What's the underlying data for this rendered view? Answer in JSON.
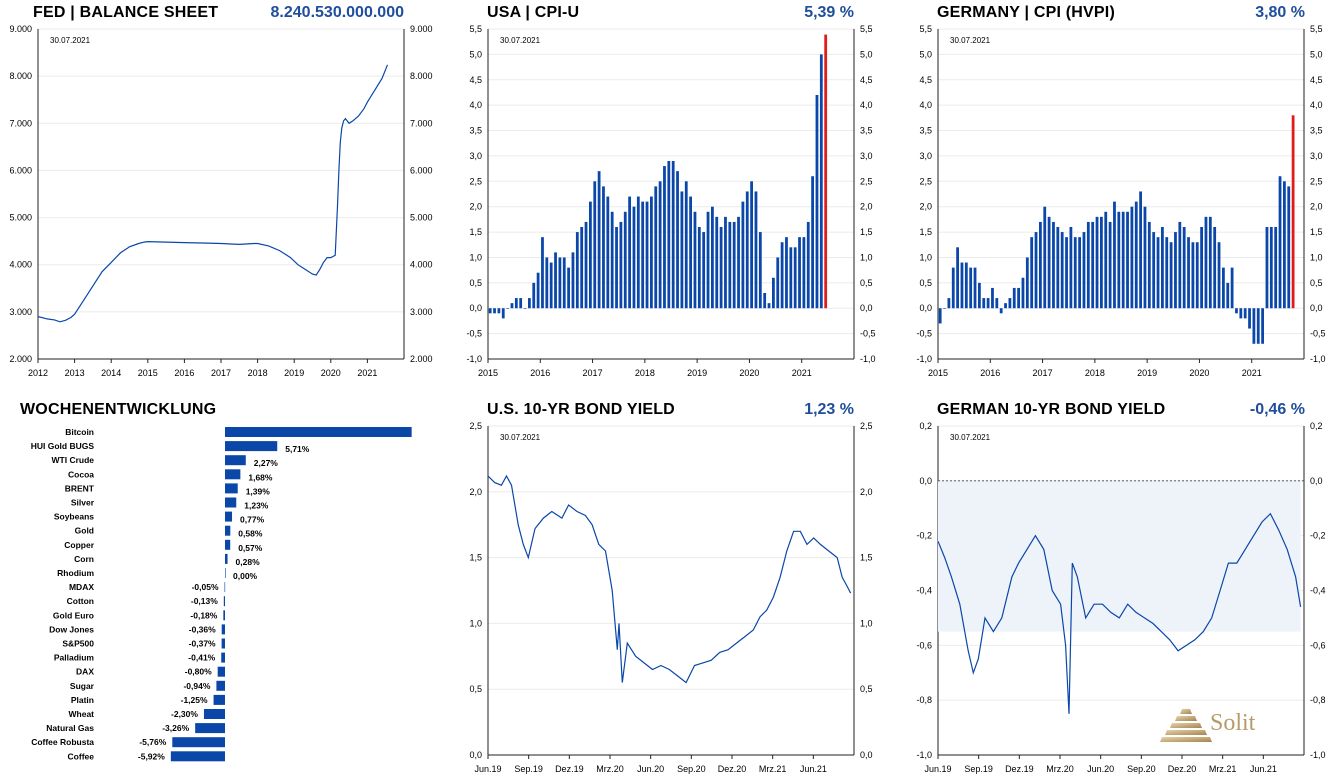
{
  "date_label": "30.07.2021",
  "brand": "Solit",
  "colors": {
    "blue": "#0a47a9",
    "red": "#e11a1a",
    "accent_text": "#1f4e9c",
    "shade": "#eef3fa"
  },
  "chart_data": [
    {
      "id": "fed",
      "type": "line",
      "title": "FED | BALANCE SHEET",
      "headline_value": "8.240.530.000.000",
      "date_label": "30.07.2021",
      "x_ticks": [
        "2012",
        "2013",
        "2014",
        "2015",
        "2016",
        "2017",
        "2018",
        "2019",
        "2020",
        "2021"
      ],
      "y_ticks": [
        "2.000",
        "3.000",
        "4.000",
        "5.000",
        "6.000",
        "7.000",
        "8.000",
        "9.000"
      ],
      "ylim": [
        2000,
        9000
      ],
      "xlim": [
        2012.0,
        2022.0
      ],
      "series": [
        {
          "x": [
            2012.0,
            2012.1,
            2012.25,
            2012.45,
            2012.6,
            2012.75,
            2012.9,
            2013.0,
            2013.25,
            2013.5,
            2013.75,
            2014.0,
            2014.25,
            2014.5,
            2014.75,
            2014.9,
            2015.0,
            2015.5,
            2016.0,
            2016.5,
            2017.0,
            2017.5,
            2017.9,
            2018.0,
            2018.3,
            2018.6,
            2018.9,
            2019.1,
            2019.3,
            2019.5,
            2019.6,
            2019.7,
            2019.8,
            2019.9,
            2020.0,
            2020.12,
            2020.18,
            2020.22,
            2020.26,
            2020.3,
            2020.35,
            2020.4,
            2020.5,
            2020.6,
            2020.75,
            2020.9,
            2021.0,
            2021.2,
            2021.4,
            2021.55
          ],
          "y": [
            2900,
            2880,
            2850,
            2830,
            2790,
            2820,
            2880,
            2950,
            3250,
            3550,
            3850,
            4050,
            4250,
            4380,
            4450,
            4480,
            4490,
            4480,
            4470,
            4460,
            4450,
            4430,
            4450,
            4450,
            4400,
            4300,
            4150,
            4000,
            3900,
            3800,
            3780,
            3900,
            4050,
            4150,
            4150,
            4200,
            5200,
            6000,
            6600,
            6900,
            7050,
            7100,
            7000,
            7050,
            7150,
            7300,
            7450,
            7700,
            7950,
            8240
          ]
        }
      ]
    },
    {
      "id": "usa_cpi",
      "type": "bar",
      "title": "USA | CPI-U",
      "headline_value": "5,39 %",
      "date_label": "30.07.2021",
      "x_ticks": [
        "2015",
        "2016",
        "2017",
        "2018",
        "2019",
        "2020",
        "2021"
      ],
      "y_ticks": [
        "-1,0",
        "-0,5",
        "0,0",
        "0,5",
        "1,0",
        "1,5",
        "2,0",
        "2,5",
        "3,0",
        "3,5",
        "4,0",
        "4,5",
        "5,0",
        "5,5"
      ],
      "ylim": [
        -1.0,
        5.5
      ],
      "x_start": "2015-01",
      "values": [
        -0.1,
        -0.1,
        -0.1,
        -0.2,
        0.0,
        0.1,
        0.2,
        0.2,
        0.0,
        0.2,
        0.5,
        0.7,
        1.4,
        1.0,
        0.9,
        1.1,
        1.0,
        1.0,
        0.8,
        1.1,
        1.5,
        1.6,
        1.7,
        2.1,
        2.5,
        2.7,
        2.4,
        2.2,
        1.9,
        1.6,
        1.7,
        1.9,
        2.2,
        2.0,
        2.2,
        2.1,
        2.1,
        2.2,
        2.4,
        2.5,
        2.8,
        2.9,
        2.9,
        2.7,
        2.3,
        2.5,
        2.2,
        1.9,
        1.6,
        1.5,
        1.9,
        2.0,
        1.8,
        1.6,
        1.8,
        1.7,
        1.7,
        1.8,
        2.1,
        2.3,
        2.5,
        2.3,
        1.5,
        0.3,
        0.1,
        0.6,
        1.0,
        1.3,
        1.4,
        1.2,
        1.2,
        1.4,
        1.4,
        1.7,
        2.6,
        4.2,
        5.0,
        5.39
      ],
      "highlight_last": true
    },
    {
      "id": "germany_cpi",
      "type": "bar",
      "title": "GERMANY | CPI (HVPI)",
      "headline_value": "3,80 %",
      "date_label": "30.07.2021",
      "x_ticks": [
        "2015",
        "2016",
        "2017",
        "2018",
        "2019",
        "2020",
        "2021"
      ],
      "y_ticks": [
        "-1,0",
        "-0,5",
        "0,0",
        "0,5",
        "1,0",
        "1,5",
        "2,0",
        "2,5",
        "3,0",
        "3,5",
        "4,0",
        "4,5",
        "5,0",
        "5,5"
      ],
      "ylim": [
        -1.0,
        5.5
      ],
      "x_start": "2015-01",
      "values": [
        -0.3,
        0.0,
        0.2,
        0.8,
        1.2,
        0.9,
        0.9,
        0.8,
        0.8,
        0.5,
        0.2,
        0.2,
        0.4,
        0.2,
        -0.1,
        0.1,
        0.2,
        0.4,
        0.4,
        0.6,
        1.0,
        1.4,
        1.5,
        1.7,
        2.0,
        1.8,
        1.7,
        1.6,
        1.5,
        1.4,
        1.6,
        1.4,
        1.4,
        1.5,
        1.7,
        1.7,
        1.8,
        1.8,
        1.9,
        1.7,
        2.1,
        1.9,
        1.9,
        1.9,
        2.0,
        2.1,
        2.3,
        2.0,
        1.7,
        1.5,
        1.4,
        1.6,
        1.4,
        1.3,
        1.5,
        1.7,
        1.6,
        1.4,
        1.3,
        1.3,
        1.6,
        1.8,
        1.8,
        1.6,
        1.3,
        0.8,
        0.5,
        0.8,
        -0.1,
        -0.2,
        -0.2,
        -0.4,
        -0.7,
        -0.7,
        -0.7,
        1.6,
        1.6,
        1.6,
        2.6,
        2.5,
        2.4,
        3.8
      ],
      "highlight_last": true
    },
    {
      "id": "weekly",
      "type": "bar",
      "orientation": "horizontal",
      "title": "WOCHENENTWICKLUNG",
      "categories": [
        "Bitcoin",
        "HUI Gold BUGS",
        "WTI Crude",
        "Cocoa",
        "BRENT",
        "Silver",
        "Soybeans",
        "Gold",
        "Copper",
        "Corn",
        "Rhodium",
        "MDAX",
        "Cotton",
        "Gold Euro",
        "Dow Jones",
        "S&P500",
        "Palladium",
        "DAX",
        "Sugar",
        "Platin",
        "Wheat",
        "Natural Gas",
        "Coffee Robusta",
        "Coffee"
      ],
      "values": [
        20.4,
        5.71,
        2.27,
        1.68,
        1.39,
        1.23,
        0.77,
        0.58,
        0.57,
        0.28,
        0.0,
        -0.05,
        -0.13,
        -0.18,
        -0.36,
        -0.37,
        -0.41,
        -0.8,
        -0.94,
        -1.25,
        -2.3,
        -3.26,
        -5.76,
        -5.92
      ],
      "labels": [
        "",
        "5,71%",
        "2,27%",
        "1,68%",
        "1,39%",
        "1,23%",
        "0,77%",
        "0,58%",
        "0,57%",
        "0,28%",
        "0,00%",
        "-0,05%",
        "-0,13%",
        "-0,18%",
        "-0,36%",
        "-0,37%",
        "-0,41%",
        "-0,80%",
        "-0,94%",
        "-1,25%",
        "-2,30%",
        "-3,26%",
        "-5,76%",
        "-5,92%"
      ]
    },
    {
      "id": "us10y",
      "type": "line",
      "title": "U.S. 10-YR BOND YIELD",
      "headline_value": "1,23 %",
      "date_label": "30.07.2021",
      "x_ticks": [
        "Jun.19",
        "Sep.19",
        "Dez.19",
        "Mrz.20",
        "Jun.20",
        "Sep.20",
        "Dez.20",
        "Mrz.21",
        "Jun.21"
      ],
      "y_ticks": [
        "0,0",
        "0,5",
        "1,0",
        "1,5",
        "2,0",
        "2,5"
      ],
      "ylim": [
        0.0,
        2.5
      ],
      "xlim": [
        2019.42,
        2021.6
      ],
      "series": [
        {
          "x": [
            2019.42,
            2019.46,
            2019.5,
            2019.53,
            2019.56,
            2019.6,
            2019.63,
            2019.66,
            2019.7,
            2019.75,
            2019.8,
            2019.86,
            2019.9,
            2019.95,
            2020.0,
            2020.04,
            2020.08,
            2020.12,
            2020.16,
            2020.19,
            2020.2,
            2020.22,
            2020.25,
            2020.3,
            2020.35,
            2020.4,
            2020.45,
            2020.5,
            2020.55,
            2020.6,
            2020.65,
            2020.7,
            2020.75,
            2020.8,
            2020.85,
            2020.9,
            2020.95,
            2021.0,
            2021.04,
            2021.08,
            2021.12,
            2021.16,
            2021.2,
            2021.24,
            2021.28,
            2021.32,
            2021.36,
            2021.4,
            2021.45,
            2021.5,
            2021.53,
            2021.56,
            2021.58
          ],
          "y": [
            2.12,
            2.07,
            2.05,
            2.12,
            2.05,
            1.75,
            1.6,
            1.5,
            1.72,
            1.8,
            1.85,
            1.8,
            1.9,
            1.85,
            1.82,
            1.75,
            1.6,
            1.55,
            1.25,
            0.8,
            1.0,
            0.55,
            0.85,
            0.75,
            0.7,
            0.65,
            0.68,
            0.65,
            0.6,
            0.55,
            0.68,
            0.7,
            0.72,
            0.78,
            0.8,
            0.85,
            0.9,
            0.95,
            1.05,
            1.1,
            1.2,
            1.35,
            1.55,
            1.7,
            1.7,
            1.6,
            1.65,
            1.6,
            1.55,
            1.5,
            1.35,
            1.28,
            1.23
          ]
        }
      ]
    },
    {
      "id": "de10y",
      "type": "line",
      "title": "GERMAN 10-YR BOND YIELD",
      "headline_value": "-0,46 %",
      "date_label": "30.07.2021",
      "x_ticks": [
        "Jun.19",
        "Sep.19",
        "Dez.19",
        "Mrz.20",
        "Jun.20",
        "Sep.20",
        "Dez.20",
        "Mrz.21",
        "Jun.21"
      ],
      "y_ticks": [
        "-1,0",
        "-0,8",
        "-0,6",
        "-0,4",
        "-0,2",
        "0,0",
        "0,2"
      ],
      "ylim": [
        -1.0,
        0.2
      ],
      "xlim": [
        2019.42,
        2021.6
      ],
      "series": [
        {
          "x": [
            2019.42,
            2019.46,
            2019.5,
            2019.55,
            2019.6,
            2019.63,
            2019.66,
            2019.7,
            2019.75,
            2019.8,
            2019.86,
            2019.9,
            2019.95,
            2020.0,
            2020.05,
            2020.1,
            2020.15,
            2020.18,
            2020.2,
            2020.22,
            2020.25,
            2020.3,
            2020.35,
            2020.4,
            2020.45,
            2020.5,
            2020.55,
            2020.6,
            2020.65,
            2020.7,
            2020.75,
            2020.8,
            2020.85,
            2020.9,
            2020.95,
            2021.0,
            2021.05,
            2021.1,
            2021.15,
            2021.2,
            2021.25,
            2021.3,
            2021.35,
            2021.4,
            2021.45,
            2021.5,
            2021.55,
            2021.58
          ],
          "y": [
            -0.22,
            -0.28,
            -0.35,
            -0.45,
            -0.62,
            -0.7,
            -0.65,
            -0.5,
            -0.55,
            -0.5,
            -0.35,
            -0.3,
            -0.25,
            -0.2,
            -0.25,
            -0.4,
            -0.45,
            -0.6,
            -0.85,
            -0.3,
            -0.35,
            -0.5,
            -0.45,
            -0.45,
            -0.48,
            -0.5,
            -0.45,
            -0.48,
            -0.5,
            -0.52,
            -0.55,
            -0.58,
            -0.62,
            -0.6,
            -0.58,
            -0.55,
            -0.5,
            -0.4,
            -0.3,
            -0.3,
            -0.25,
            -0.2,
            -0.15,
            -0.12,
            -0.18,
            -0.25,
            -0.35,
            -0.46
          ]
        }
      ]
    }
  ]
}
